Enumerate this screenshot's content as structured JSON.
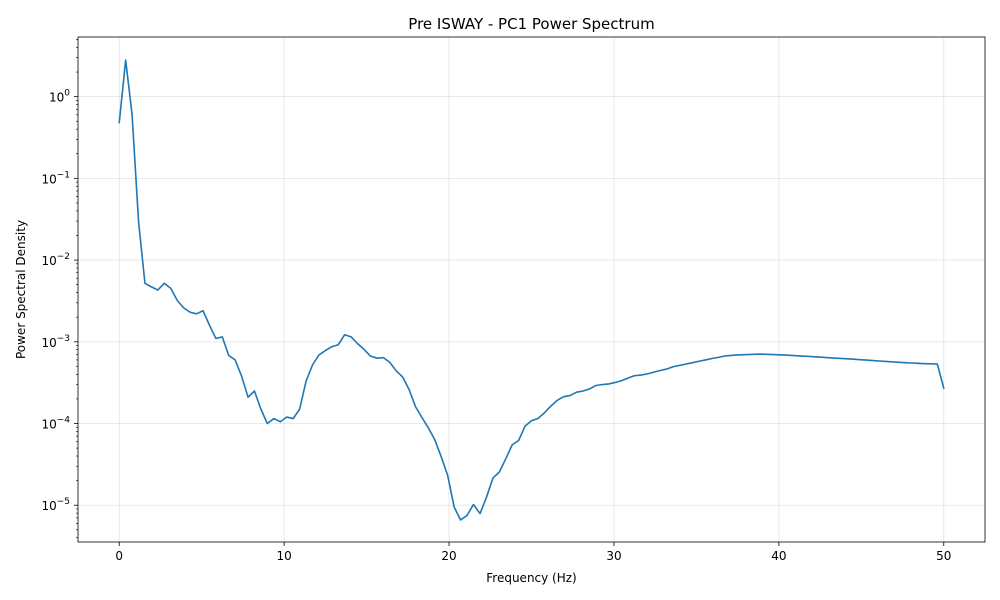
{
  "chart_data": {
    "type": "line",
    "title": "Pre ISWAY - PC1 Power Spectrum",
    "xlabel": "Frequency (Hz)",
    "ylabel": "Power Spectral Density",
    "xlim": [
      -2.5,
      52.5
    ],
    "ylim_log10": [
      -5.45,
      0.73
    ],
    "yscale": "log",
    "grid": true,
    "line_color": "#1f77b4",
    "x_ticks": [
      {
        "value": 0,
        "label": "0"
      },
      {
        "value": 10,
        "label": "10"
      },
      {
        "value": 20,
        "label": "20"
      },
      {
        "value": 30,
        "label": "30"
      },
      {
        "value": 40,
        "label": "40"
      },
      {
        "value": 50,
        "label": "50"
      }
    ],
    "y_ticks": [
      {
        "exp": 0,
        "label": "10",
        "sup": "0"
      },
      {
        "exp": -1,
        "label": "10",
        "sup": "−1"
      },
      {
        "exp": -2,
        "label": "10",
        "sup": "−2"
      },
      {
        "exp": -3,
        "label": "10",
        "sup": "−3"
      },
      {
        "exp": -4,
        "label": "10",
        "sup": "−4"
      },
      {
        "exp": -5,
        "label": "10",
        "sup": "−5"
      }
    ],
    "series": [
      {
        "x": [
          0,
          0.39,
          0.78,
          1.17,
          1.56,
          1.95,
          2.34,
          2.73,
          3.13,
          3.52,
          3.91,
          4.3,
          4.69,
          5.08,
          5.47,
          5.86,
          6.25,
          6.64,
          7.03,
          7.42,
          7.81,
          8.2,
          8.59,
          8.98,
          9.38,
          9.77,
          10.16,
          10.55,
          10.94,
          11.33,
          11.72,
          12.11,
          12.5,
          12.89,
          13.28,
          13.67,
          14.06,
          14.45,
          14.84,
          15.23,
          15.63,
          16.02,
          16.41,
          16.8,
          17.19,
          17.58,
          17.97,
          18.36,
          18.75,
          19.14,
          19.53,
          19.92,
          20.31,
          20.7,
          21.09,
          21.48,
          21.88,
          22.27,
          22.66,
          23.05,
          23.44,
          23.83,
          24.22,
          24.61,
          25.0,
          25.39,
          25.78,
          26.17,
          26.56,
          26.95,
          27.34,
          27.73,
          28.13,
          28.52,
          28.91,
          29.3,
          29.69,
          30.08,
          30.47,
          30.86,
          31.25,
          31.64,
          32.03,
          32.42,
          32.81,
          33.2,
          33.59,
          33.98,
          34.38,
          34.77,
          35.16,
          35.55,
          35.94,
          36.33,
          36.72,
          37.11,
          37.5,
          37.89,
          38.28,
          38.67,
          39.06,
          39.45,
          39.84,
          40.23,
          40.63,
          41.02,
          41.41,
          41.8,
          42.19,
          42.58,
          42.97,
          43.36,
          43.75,
          44.14,
          44.53,
          44.92,
          45.31,
          45.7,
          46.09,
          46.48,
          46.88,
          47.27,
          47.66,
          48.05,
          48.44,
          48.83,
          49.22,
          49.61,
          50.0
        ],
        "values": [
          0.48,
          2.8,
          0.6,
          0.03,
          0.0052,
          0.0047,
          0.0043,
          0.0052,
          0.0045,
          0.0032,
          0.0026,
          0.0023,
          0.0022,
          0.0024,
          0.0016,
          0.0011,
          0.00115,
          0.00068,
          0.0006,
          0.00038,
          0.00021,
          0.00025,
          0.00015,
          0.0001,
          0.000115,
          0.000105,
          0.00012,
          0.000115,
          0.00015,
          0.00033,
          0.00052,
          0.00069,
          0.00078,
          0.00087,
          0.00092,
          0.00122,
          0.00115,
          0.00095,
          0.00081,
          0.00067,
          0.00063,
          0.00064,
          0.00056,
          0.00044,
          0.00037,
          0.00026,
          0.00016,
          0.000118,
          8.8e-05,
          6.3e-05,
          3.9e-05,
          2.3e-05,
          9.5e-06,
          6.6e-06,
          7.5e-06,
          1.02e-05,
          7.9e-06,
          1.25e-05,
          2.15e-05,
          2.55e-05,
          3.7e-05,
          5.5e-05,
          6.2e-05,
          9.3e-05,
          0.000108,
          0.000115,
          0.000135,
          0.000163,
          0.000192,
          0.000213,
          0.00022,
          0.000242,
          0.00025,
          0.000265,
          0.000292,
          0.0003,
          0.000305,
          0.000318,
          0.000335,
          0.00036,
          0.000385,
          0.000392,
          0.000405,
          0.000425,
          0.000445,
          0.000465,
          0.000495,
          0.000515,
          0.000535,
          0.000555,
          0.000578,
          0.0006,
          0.000625,
          0.000645,
          0.00067,
          0.00068,
          0.00069,
          0.000695,
          0.0007,
          0.000705,
          0.000705,
          0.0007,
          0.000695,
          0.00069,
          0.000683,
          0.000676,
          0.000669,
          0.000662,
          0.000655,
          0.000648,
          0.00064,
          0.000633,
          0.000626,
          0.000619,
          0.000612,
          0.000604,
          0.000597,
          0.00059,
          0.000582,
          0.000575,
          0.000568,
          0.000561,
          0.000555,
          0.00055,
          0.000545,
          0.00054,
          0.000537,
          0.000535,
          0.00027
        ]
      }
    ]
  }
}
